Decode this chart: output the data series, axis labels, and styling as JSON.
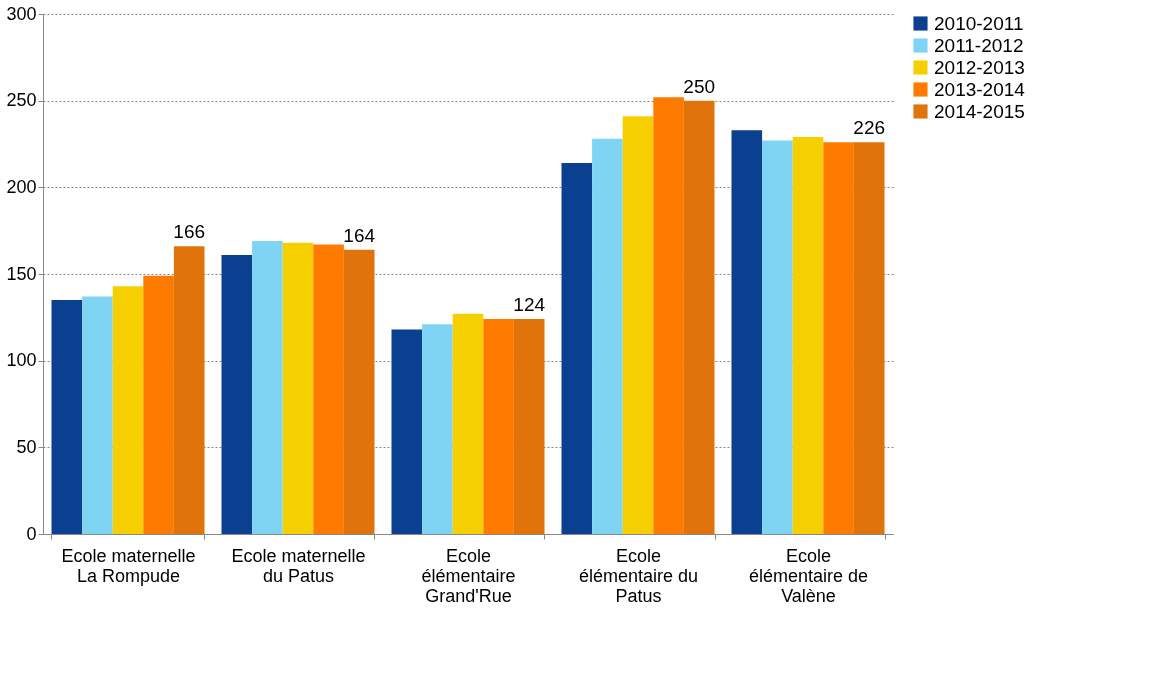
{
  "chart_data": {
    "type": "bar",
    "categories": [
      "Ecole maternelle\nLa Rompude",
      "Ecole maternelle\ndu Patus",
      "Ecole\nélémentaire\nGrand'Rue",
      "Ecole\nélémentaire du\nPatus",
      "Ecole\nélémentaire de\nValène"
    ],
    "series": [
      {
        "name": "2010-2011",
        "color": "#0b3f8f",
        "values": [
          135,
          161,
          118,
          214,
          233
        ]
      },
      {
        "name": "2011-2012",
        "color": "#7fd3f3",
        "values": [
          137,
          169,
          121,
          228,
          227
        ]
      },
      {
        "name": "2012-2013",
        "color": "#f5cf00",
        "values": [
          143,
          168,
          127,
          241,
          229
        ]
      },
      {
        "name": "2013-2014",
        "color": "#ff7b00",
        "values": [
          149,
          167,
          124,
          252,
          226
        ]
      },
      {
        "name": "2014-2015",
        "color": "#e0730a",
        "values": [
          166,
          164,
          124,
          250,
          226
        ],
        "value_labels": [
          "166",
          "164",
          "124",
          "250",
          "226"
        ]
      }
    ],
    "ylim": [
      0,
      300
    ],
    "yticks": [
      0,
      50,
      100,
      150,
      200,
      250,
      300
    ],
    "grid": "y",
    "legend": "right"
  }
}
